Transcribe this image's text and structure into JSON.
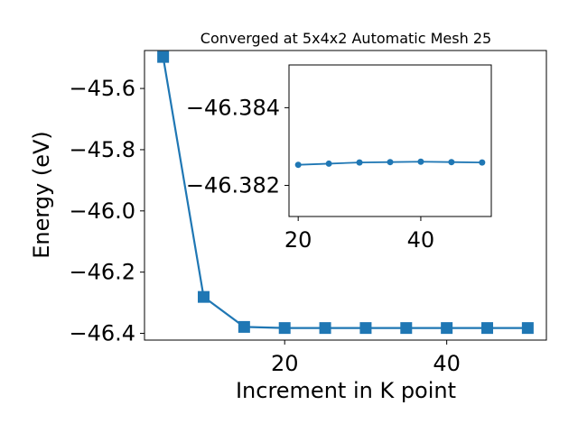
{
  "chart_data": [
    {
      "type": "line",
      "title": "Converged at 5x4x2 Automatic Mesh 25",
      "xlabel": "Increment in K point",
      "ylabel": "Energy (eV)",
      "xlim": [
        2.7,
        52.3
      ],
      "ylim": [
        -46.422,
        -45.476
      ],
      "xticks": [
        20,
        40
      ],
      "yticks": [
        -45.6,
        -45.8,
        -46.0,
        -46.2,
        -46.4
      ],
      "xtick_labels": [
        "20",
        "40"
      ],
      "ytick_labels": [
        "−45.6",
        "−45.8",
        "−46.0",
        "−46.2",
        "−46.4"
      ],
      "marker": "square",
      "grid": false,
      "color": "#1f77b4",
      "series": [
        {
          "x": [
            5,
            10,
            15,
            20,
            25,
            30,
            35,
            40,
            45,
            50
          ],
          "y": [
            -45.497,
            -46.281,
            -46.379,
            -46.3826,
            -46.3826,
            -46.3826,
            -46.3826,
            -46.3826,
            -46.3826,
            -46.3826
          ]
        }
      ]
    },
    {
      "type": "line",
      "title": "",
      "xlabel": "",
      "ylabel": "",
      "xlim": [
        18.5,
        51.5
      ],
      "ylim": [
        -46.3812,
        -46.3851
      ],
      "xticks": [
        20,
        40
      ],
      "yticks": [
        -46.384,
        -46.382
      ],
      "xtick_labels": [
        "20",
        "40"
      ],
      "ytick_labels": [
        "−46.384",
        "−46.382"
      ],
      "marker": "circle",
      "grid": false,
      "color": "#1f77b4",
      "series": [
        {
          "x": [
            20,
            25,
            30,
            35,
            40,
            45,
            50
          ],
          "y": [
            -46.38253,
            -46.38256,
            -46.38259,
            -46.3826,
            -46.38261,
            -46.3826,
            -46.38259
          ]
        }
      ]
    }
  ]
}
